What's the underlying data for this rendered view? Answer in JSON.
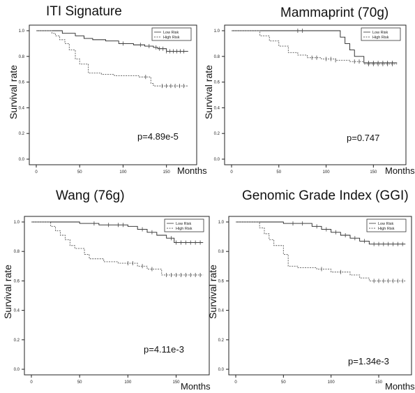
{
  "chart_data": [
    {
      "type": "line",
      "title": "ITI Signature",
      "xlabel": "Months",
      "ylabel": "Survival rate",
      "xlim": [
        0,
        180
      ],
      "ylim": [
        0,
        1
      ],
      "xticks": [
        "0",
        "50",
        "100",
        "150"
      ],
      "yticks": [
        "0.0",
        "0.2",
        "0.4",
        "0.6",
        "0.8",
        "1.0"
      ],
      "annotation": "p=4.89e-5",
      "legend_position": "top-right",
      "series": [
        {
          "name": "Low Risk",
          "style": "solid",
          "x": [
            0,
            18,
            30,
            45,
            55,
            65,
            80,
            95,
            105,
            112,
            125,
            135,
            140,
            150,
            175
          ],
          "y": [
            1.0,
            1.0,
            0.98,
            0.96,
            0.94,
            0.93,
            0.92,
            0.9,
            0.9,
            0.89,
            0.88,
            0.87,
            0.86,
            0.84,
            0.84
          ],
          "censor_x": [
            100,
            120,
            130,
            138,
            142,
            146,
            150,
            154,
            158,
            162,
            166,
            170
          ]
        },
        {
          "name": "High Risk",
          "style": "dashed",
          "x": [
            0,
            18,
            22,
            27,
            33,
            38,
            45,
            50,
            60,
            75,
            90,
            105,
            118,
            122,
            132,
            135,
            175
          ],
          "y": [
            1.0,
            0.98,
            0.96,
            0.93,
            0.9,
            0.85,
            0.78,
            0.74,
            0.67,
            0.66,
            0.65,
            0.65,
            0.64,
            0.64,
            0.59,
            0.57,
            0.57
          ],
          "censor_x": [
            126,
            145,
            150,
            155,
            160,
            165,
            170
          ]
        }
      ]
    },
    {
      "type": "line",
      "title": "Mammaprint (70g)",
      "xlabel": "Months",
      "ylabel": "Survival rate",
      "xlim": [
        0,
        180
      ],
      "ylim": [
        0,
        1
      ],
      "xticks": [
        "0",
        "50",
        "100",
        "150"
      ],
      "yticks": [
        "0.0",
        "0.2",
        "0.4",
        "0.6",
        "0.8",
        "1.0"
      ],
      "annotation": "p=0.747",
      "legend_position": "top-right",
      "series": [
        {
          "name": "Low Risk",
          "style": "solid",
          "x": [
            0,
            100,
            115,
            120,
            125,
            130,
            140,
            175
          ],
          "y": [
            1.0,
            1.0,
            0.95,
            0.9,
            0.85,
            0.8,
            0.75,
            0.75
          ],
          "censor_x": [
            70,
            75,
            145,
            150,
            155,
            160,
            165,
            170
          ]
        },
        {
          "name": "High Risk",
          "style": "dashed",
          "x": [
            0,
            20,
            30,
            40,
            50,
            60,
            70,
            80,
            95,
            110,
            125,
            140,
            175
          ],
          "y": [
            1.0,
            1.0,
            0.96,
            0.92,
            0.88,
            0.83,
            0.81,
            0.79,
            0.78,
            0.77,
            0.76,
            0.74,
            0.74
          ],
          "censor_x": [
            85,
            90,
            100,
            105,
            110,
            130,
            135,
            145,
            150,
            155,
            160,
            165,
            170
          ]
        }
      ]
    },
    {
      "type": "line",
      "title": "Wang (76g)",
      "xlabel": "Months",
      "ylabel": "Survival rate",
      "xlim": [
        0,
        180
      ],
      "ylim": [
        0,
        1
      ],
      "xticks": [
        "0",
        "50",
        "100",
        "150"
      ],
      "yticks": [
        "0.0",
        "0.2",
        "0.4",
        "0.6",
        "0.8",
        "1.0"
      ],
      "annotation": "p=4.11e-3",
      "legend_position": "top-right",
      "series": [
        {
          "name": "Low Risk",
          "style": "solid",
          "x": [
            0,
            40,
            50,
            70,
            100,
            110,
            120,
            130,
            140,
            148,
            178
          ],
          "y": [
            1.0,
            1.0,
            0.99,
            0.98,
            0.97,
            0.95,
            0.93,
            0.91,
            0.89,
            0.86,
            0.86
          ],
          "censor_x": [
            65,
            80,
            90,
            95,
            115,
            125,
            145,
            150,
            155,
            160,
            165,
            170,
            175
          ]
        },
        {
          "name": "High Risk",
          "style": "dashed",
          "x": [
            0,
            15,
            20,
            25,
            30,
            35,
            40,
            45,
            55,
            60,
            75,
            90,
            110,
            120,
            135,
            178
          ],
          "y": [
            1.0,
            1.0,
            0.97,
            0.94,
            0.91,
            0.88,
            0.84,
            0.82,
            0.78,
            0.75,
            0.73,
            0.72,
            0.7,
            0.68,
            0.64,
            0.64
          ],
          "censor_x": [
            100,
            105,
            115,
            125,
            140,
            145,
            150,
            155,
            160,
            165,
            170,
            175
          ]
        }
      ]
    },
    {
      "type": "line",
      "title": "Genomic Grade Index (GGI)",
      "xlabel": "Months",
      "ylabel": "Survival rate",
      "xlim": [
        0,
        180
      ],
      "ylim": [
        0,
        1
      ],
      "xticks": [
        "0",
        "50",
        "100",
        "150"
      ],
      "yticks": [
        "0.0",
        "0.2",
        "0.4",
        "0.6",
        "0.8",
        "1.0"
      ],
      "annotation": "p=1.34e-3",
      "legend_position": "top-right",
      "series": [
        {
          "name": "Low Risk",
          "style": "solid",
          "x": [
            0,
            50,
            80,
            90,
            100,
            110,
            120,
            130,
            140,
            178
          ],
          "y": [
            1.0,
            0.99,
            0.97,
            0.95,
            0.93,
            0.91,
            0.89,
            0.87,
            0.85,
            0.85
          ],
          "censor_x": [
            60,
            70,
            85,
            95,
            105,
            115,
            125,
            135,
            145,
            150,
            155,
            160,
            165,
            170,
            175
          ]
        },
        {
          "name": "High Risk",
          "style": "dashed",
          "x": [
            0,
            20,
            25,
            30,
            35,
            40,
            50,
            55,
            65,
            85,
            100,
            120,
            130,
            140,
            178
          ],
          "y": [
            1.0,
            1.0,
            0.96,
            0.92,
            0.88,
            0.84,
            0.78,
            0.7,
            0.69,
            0.68,
            0.66,
            0.64,
            0.62,
            0.6,
            0.6
          ],
          "censor_x": [
            90,
            110,
            145,
            150,
            155,
            160,
            165,
            170,
            175
          ]
        }
      ]
    }
  ]
}
